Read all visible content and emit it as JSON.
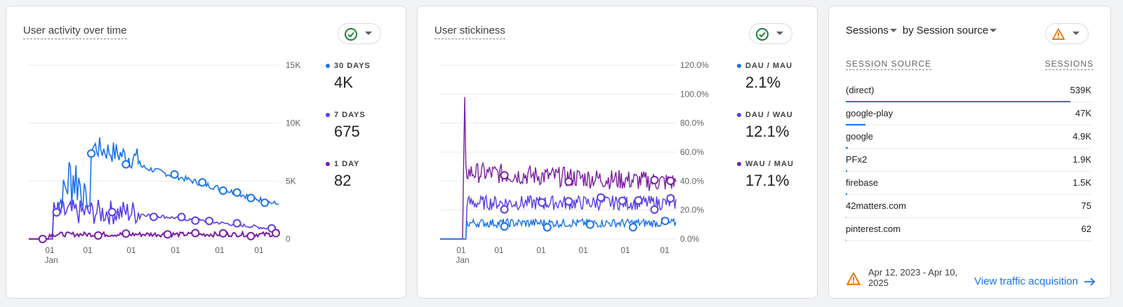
{
  "card1": {
    "title": "User activity over time",
    "status_icon": "check-circle-icon",
    "y_ticks": [
      "15K",
      "10K",
      "5K",
      "0"
    ],
    "x_ticks": [
      "01",
      "01",
      "01",
      "01",
      "01",
      "01"
    ],
    "x_sub": "Jan",
    "legend": [
      {
        "label": "30 DAYS",
        "value": "4K",
        "color": "#1a73e8"
      },
      {
        "label": "7 DAYS",
        "value": "675",
        "color": "#5b3ee8"
      },
      {
        "label": "1 DAY",
        "value": "82",
        "color": "#7b1fa2"
      }
    ]
  },
  "card2": {
    "title": "User stickiness",
    "status_icon": "check-circle-icon",
    "y_ticks": [
      "120.0%",
      "100.0%",
      "80.0%",
      "60.0%",
      "40.0%",
      "20.0%",
      "0.0%"
    ],
    "x_ticks": [
      "01",
      "01",
      "01",
      "01",
      "01",
      "01"
    ],
    "x_sub": "Jan",
    "legend": [
      {
        "label": "DAU / MAU",
        "value": "2.1%",
        "color": "#1a73e8"
      },
      {
        "label": "DAU / WAU",
        "value": "12.1%",
        "color": "#5b3ee8"
      },
      {
        "label": "WAU / MAU",
        "value": "17.1%",
        "color": "#7b1fa2"
      }
    ]
  },
  "card3": {
    "title_metric": "Sessions",
    "title_by": "by",
    "title_dim": "Session source",
    "status_icon": "warning-icon",
    "col_source": "SESSION SOURCE",
    "col_sessions": "SESSIONS",
    "rows": [
      {
        "source": "(direct)",
        "sessions": "539K",
        "share": 1.0
      },
      {
        "source": "google-play",
        "sessions": "47K",
        "share": 0.087
      },
      {
        "source": "google",
        "sessions": "4.9K",
        "share": 0.009
      },
      {
        "source": "PFx2",
        "sessions": "1.9K",
        "share": 0.004
      },
      {
        "source": "firebase",
        "sessions": "1.5K",
        "share": 0.003
      },
      {
        "source": "42matters.com",
        "sessions": "75",
        "share": 0.0
      },
      {
        "source": "pinterest.com",
        "sessions": "62",
        "share": 0.0
      }
    ],
    "date_range": "Apr 12, 2023 - Apr 10, 2025",
    "link_label": "View traffic acquisition"
  }
}
